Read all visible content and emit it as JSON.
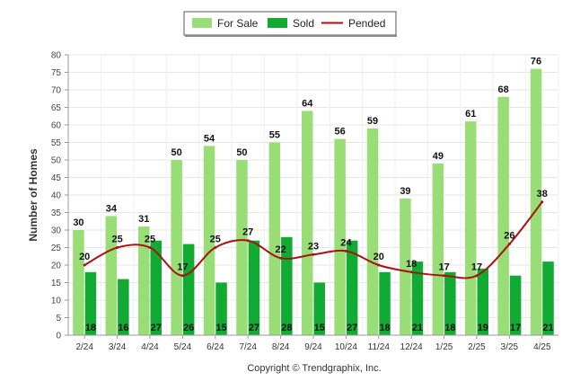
{
  "chart_data": {
    "type": "bar",
    "categories": [
      "2/24",
      "3/24",
      "4/24",
      "5/24",
      "6/24",
      "7/24",
      "8/24",
      "9/24",
      "10/24",
      "11/24",
      "12/24",
      "1/25",
      "2/25",
      "3/25",
      "4/25"
    ],
    "series": [
      {
        "name": "For Sale",
        "type": "bar",
        "color": "#99dd77",
        "values": [
          30,
          34,
          31,
          50,
          54,
          50,
          55,
          64,
          56,
          59,
          39,
          49,
          61,
          68,
          76
        ]
      },
      {
        "name": "Sold",
        "type": "bar",
        "color": "#11aa33",
        "values": [
          18,
          16,
          27,
          26,
          15,
          27,
          28,
          15,
          27,
          18,
          21,
          18,
          19,
          17,
          21
        ]
      },
      {
        "name": "Pended",
        "type": "line",
        "color": "#aa1111",
        "values": [
          20,
          25,
          25,
          17,
          25,
          27,
          22,
          23,
          24,
          20,
          18,
          17,
          17,
          26,
          38
        ]
      }
    ],
    "ylabel": "Number of Homes",
    "xlabel": "",
    "ylim": [
      0,
      80
    ],
    "yticks": [
      0,
      5,
      10,
      15,
      20,
      25,
      30,
      35,
      40,
      45,
      50,
      55,
      60,
      65,
      70,
      75,
      80
    ],
    "grid": true,
    "legend": "top-center"
  },
  "footer": {
    "copyright": "Copyright © Trendgraphix, Inc."
  }
}
